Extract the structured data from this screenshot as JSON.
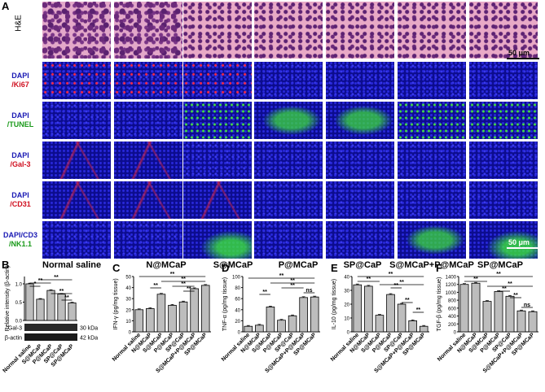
{
  "panel_a_label": "A",
  "row_labels": [
    {
      "line1": "H&E",
      "line2": "",
      "c1": "#000000",
      "c2": "#000000"
    },
    {
      "line1": "DAPI",
      "line2": "/Ki67",
      "c1": "#1a1ab4",
      "c2": "#d01020"
    },
    {
      "line1": "DAPI",
      "line2": "/TUNEL",
      "c1": "#1a1ab4",
      "c2": "#1a9a1a"
    },
    {
      "line1": "DAPI",
      "line2": "/Gal-3",
      "c1": "#1a1ab4",
      "c2": "#d01020"
    },
    {
      "line1": "DAPI",
      "line2": "/CD31",
      "c1": "#1a1ab4",
      "c2": "#d01020"
    },
    {
      "line1": "DAPI/CD3",
      "line2": "/NK1.1",
      "c1": "#1a1ab4",
      "c2": "#1a9a1a"
    }
  ],
  "scale_bar_text": "50 μm",
  "group_labels": [
    "Normal saline",
    "N@MCaP",
    "S@MCaP",
    "P@MCaP",
    "SP@CaP",
    "S@MCaP+P@MCaP",
    "SP@MCaP"
  ],
  "panel_b": {
    "label": "B",
    "title": "Normal saline",
    "ylabel": "Relative intensity (β-actin)",
    "blot_labels": [
      {
        "name": "Gal-3",
        "kda": "30 kDa"
      },
      {
        "name": "β-actin",
        "kda": "42 kDa"
      }
    ]
  },
  "sig": {
    "double": "**",
    "ns": "ns"
  },
  "chart_data": [
    {
      "type": "bar",
      "panel": "B",
      "categories": [
        "Normal saline",
        "S@MCaP",
        "P@MCaP",
        "SP@CaP",
        "SP@MCaP"
      ],
      "values": [
        1.0,
        0.58,
        0.82,
        0.72,
        0.48
      ],
      "ylabel": "Relative intensity (β-actin)",
      "ylim": [
        0,
        1.2
      ],
      "yticks": [
        "0.0",
        "0.5",
        "1.0"
      ]
    },
    {
      "type": "bar",
      "panel": "C",
      "categories": [
        "Normal saline",
        "N@MCaP",
        "S@MCaP",
        "P@MCaP",
        "SP@CaP",
        "S@MCaP+P@MCaP",
        "SP@MCaP"
      ],
      "values": [
        20,
        21,
        34,
        24,
        27,
        39,
        42
      ],
      "ylabel": "IFN-γ (pg/mg tissue)",
      "ylim": [
        0,
        50
      ],
      "yticks": [
        "0",
        "10",
        "20",
        "30",
        "40",
        "50"
      ]
    },
    {
      "type": "bar",
      "panel": "D",
      "categories": [
        "Normal saline",
        "N@MCaP",
        "S@MCaP",
        "P@MCaP",
        "SP@CaP",
        "S@MCaP+P@MCaP",
        "SP@MCaP"
      ],
      "values": [
        10,
        12,
        45,
        21,
        29,
        62,
        63
      ],
      "ylabel": "TNF-α (pg/mg tissue)",
      "ylim": [
        0,
        100
      ],
      "yticks": [
        "0",
        "20",
        "40",
        "60",
        "80",
        "100"
      ]
    },
    {
      "type": "bar",
      "panel": "E",
      "categories": [
        "Normal saline",
        "N@MCaP",
        "S@MCaP",
        "P@MCaP",
        "SP@CaP",
        "S@MCaP+P@MCaP",
        "SP@MCaP"
      ],
      "values": [
        34,
        33,
        12,
        27,
        20,
        8,
        4
      ],
      "ylabel": "IL-10 (pg/mg tissue)",
      "ylim": [
        0,
        40
      ],
      "yticks": [
        "0",
        "10",
        "20",
        "30",
        "40"
      ]
    },
    {
      "type": "bar",
      "panel": "F",
      "categories": [
        "Normal saline",
        "N@MCaP",
        "S@MCaP",
        "P@MCaP",
        "SP@CaP",
        "S@MCaP+P@MCaP",
        "SP@MCaP"
      ],
      "values": [
        1200,
        1230,
        770,
        1020,
        900,
        530,
        510
      ],
      "ylabel": "TGF-β (pg/mg tissue)",
      "ylim": [
        0,
        1400
      ],
      "yticks": [
        "0",
        "200",
        "400",
        "600",
        "800",
        "1000",
        "1200",
        "1400"
      ]
    }
  ]
}
